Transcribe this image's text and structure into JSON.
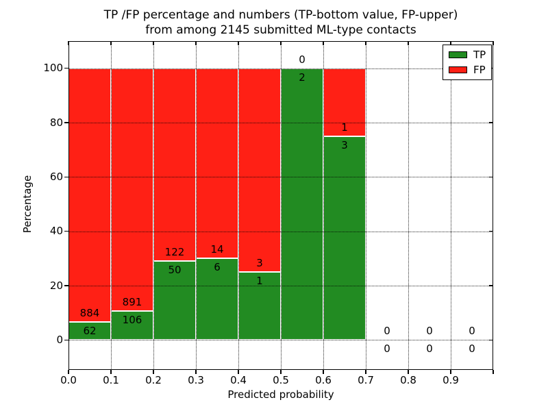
{
  "figure": {
    "title_line1": "TP /FP percentage and numbers (TP-bottom value, FP-upper)",
    "title_line2": "from among 2145 submitted ML-type contacts",
    "xlabel": "Predicted probability",
    "ylabel": "Percentage"
  },
  "legend": {
    "position": "upper right",
    "items": [
      {
        "label": "TP",
        "color": "#228b22"
      },
      {
        "label": "FP",
        "color": "#ff2015"
      }
    ]
  },
  "chart_data": {
    "type": "bar",
    "stacked": true,
    "orientation": "vertical",
    "title": "TP /FP percentage and numbers (TP-bottom value, FP-upper) from among 2145 submitted ML-type contacts",
    "xlabel": "Predicted probability",
    "ylabel": "Percentage",
    "total_submitted_contacts": 2145,
    "xlim": [
      0.0,
      1.0
    ],
    "ylim": [
      -11,
      110
    ],
    "x_ticks": [
      0.0,
      0.1,
      0.2,
      0.3,
      0.4,
      0.5,
      0.6,
      0.7,
      0.8,
      0.9
    ],
    "x_tick_labels": [
      "0.0",
      "0.1",
      "0.2",
      "0.3",
      "0.4",
      "0.5",
      "0.6",
      "0.7",
      "0.8",
      "0.9"
    ],
    "y_ticks": [
      0,
      20,
      40,
      60,
      80,
      100
    ],
    "grid": "dotted",
    "legend_position": "upper right",
    "bar_edge_color": "#ffffff",
    "series": [
      {
        "name": "TP",
        "color": "#228b22",
        "counts": [
          62,
          106,
          50,
          6,
          1,
          2,
          3,
          0,
          0,
          0
        ]
      },
      {
        "name": "FP",
        "color": "#ff2015",
        "counts": [
          884,
          891,
          122,
          14,
          3,
          0,
          1,
          0,
          0,
          0
        ]
      }
    ],
    "bins": [
      {
        "range": [
          0.0,
          0.1
        ],
        "tp_count": 62,
        "fp_count": 884,
        "tp_pct": 6.6,
        "fp_pct": 93.4
      },
      {
        "range": [
          0.1,
          0.2
        ],
        "tp_count": 106,
        "fp_count": 891,
        "tp_pct": 10.6,
        "fp_pct": 89.4
      },
      {
        "range": [
          0.2,
          0.3
        ],
        "tp_count": 50,
        "fp_count": 122,
        "tp_pct": 29.1,
        "fp_pct": 70.9
      },
      {
        "range": [
          0.3,
          0.4
        ],
        "tp_count": 6,
        "fp_count": 14,
        "tp_pct": 30.0,
        "fp_pct": 70.0
      },
      {
        "range": [
          0.4,
          0.5
        ],
        "tp_count": 1,
        "fp_count": 3,
        "tp_pct": 25.0,
        "fp_pct": 75.0
      },
      {
        "range": [
          0.5,
          0.6
        ],
        "tp_count": 2,
        "fp_count": 0,
        "tp_pct": 100.0,
        "fp_pct": 0.0
      },
      {
        "range": [
          0.6,
          0.7
        ],
        "tp_count": 3,
        "fp_count": 1,
        "tp_pct": 75.0,
        "fp_pct": 25.0
      },
      {
        "range": [
          0.7,
          0.8
        ],
        "tp_count": 0,
        "fp_count": 0,
        "tp_pct": 0.0,
        "fp_pct": 0.0
      },
      {
        "range": [
          0.8,
          0.9
        ],
        "tp_count": 0,
        "fp_count": 0,
        "tp_pct": 0.0,
        "fp_pct": 0.0
      },
      {
        "range": [
          0.9,
          1.0
        ],
        "tp_count": 0,
        "fp_count": 0,
        "tp_pct": 0.0,
        "fp_pct": 0.0
      }
    ]
  }
}
